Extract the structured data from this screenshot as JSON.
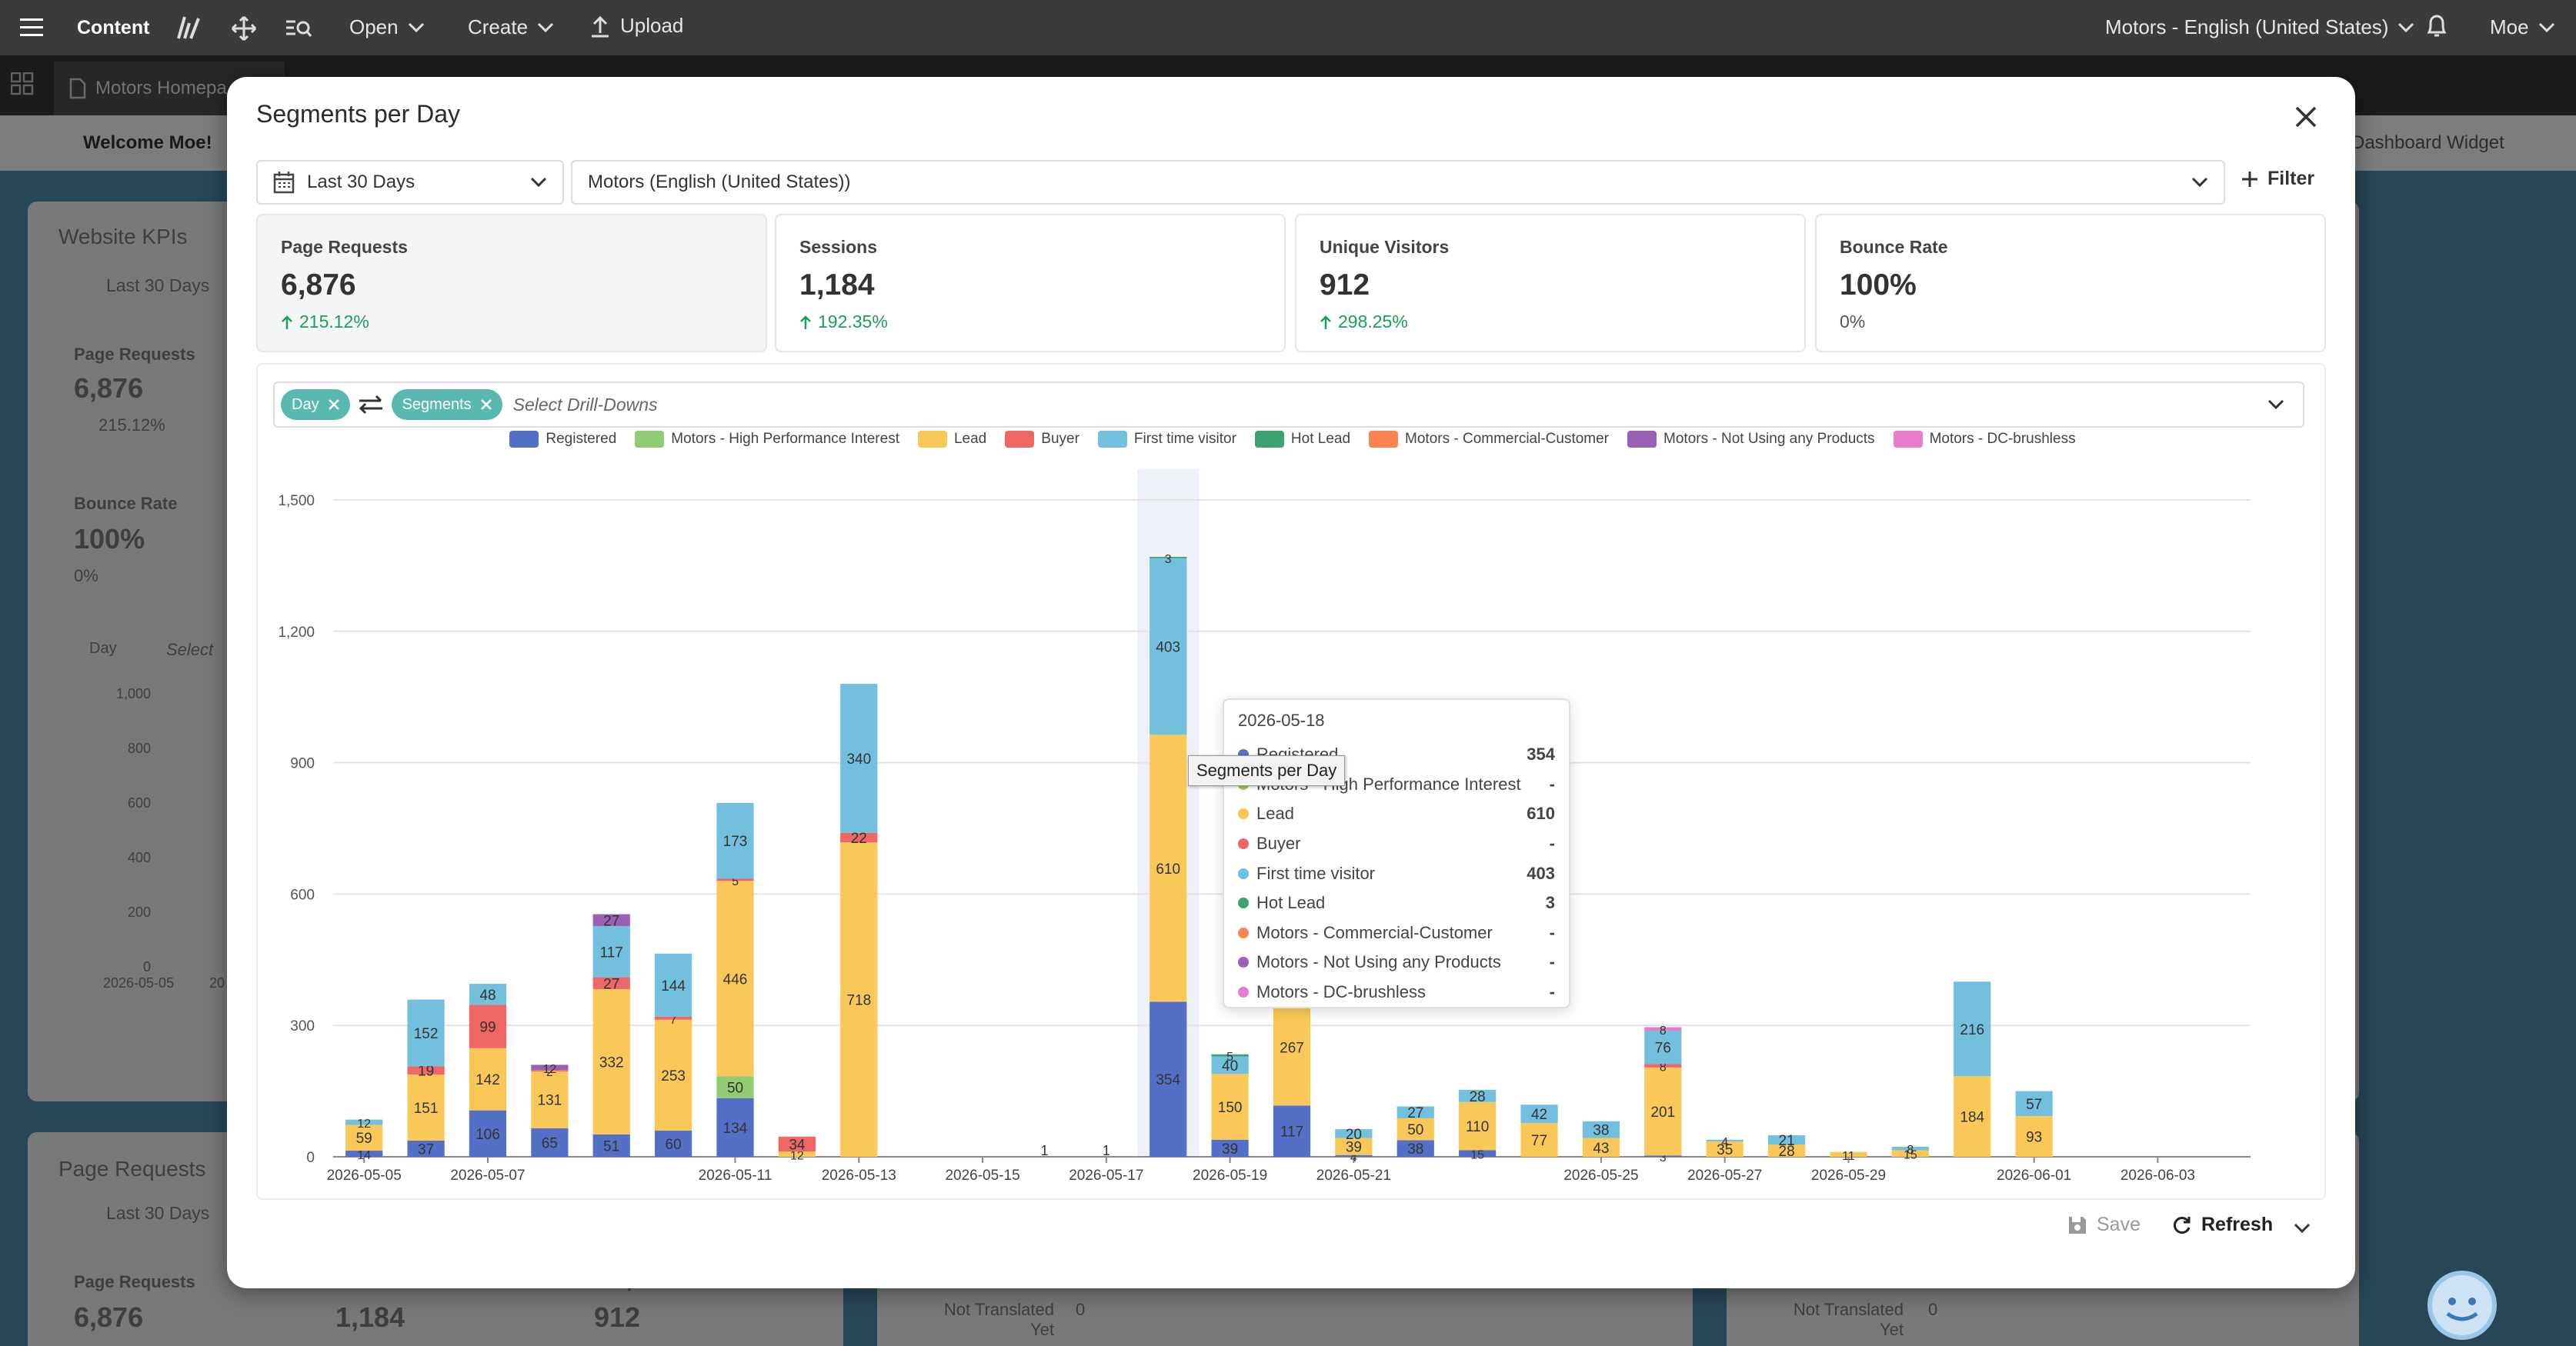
{
  "topbar": {
    "menu": [
      "Open",
      "Create"
    ],
    "upload": "Upload",
    "app_title": "Content",
    "site_selector": "Motors - English (United States)",
    "user": "Moe"
  },
  "tabbar": {
    "tab": "Motors Homepa"
  },
  "background": {
    "welcome": "Welcome Moe!",
    "dashboard_widget": "Dashboard Widget",
    "website_kpis_title": "Website KPIs",
    "date_range": "Last 30 Days",
    "page_requests_label": "Page Requests",
    "page_requests_value": "6,876",
    "page_requests_change": "215.12%",
    "bounce_rate_label": "Bounce Rate",
    "bounce_rate_value": "100%",
    "bounce_rate_change": "0%",
    "day_chip": "Day",
    "select_placeholder": "Select",
    "mini_y_ticks": [
      "1,000",
      "800",
      "600",
      "400",
      "200",
      "0"
    ],
    "mini_x_ticks": [
      "2026-05-05",
      "20"
    ],
    "page_requests_title": "Page Requests",
    "date_range2": "Last 30 Days",
    "bottom_kpis": [
      {
        "label": "Page Requests",
        "value": "6,876"
      },
      {
        "label": "Sessions",
        "value": "1,184"
      },
      {
        "label": "Unique Visitors",
        "value": "912"
      }
    ],
    "not_translated": "Not Translated Yet",
    "not_translated_value": "0"
  },
  "modal": {
    "title": "Segments per Day",
    "date_range": "Last 30 Days",
    "site": "Motors (English (United States))",
    "filter_label": "Filter",
    "kpis": [
      {
        "label": "Page Requests",
        "value": "6,876",
        "change": "215.12%",
        "up": true
      },
      {
        "label": "Sessions",
        "value": "1,184",
        "change": "192.35%",
        "up": true
      },
      {
        "label": "Unique Visitors",
        "value": "912",
        "change": "298.25%",
        "up": true
      },
      {
        "label": "Bounce Rate",
        "value": "100%",
        "change": "0%",
        "up": false
      }
    ],
    "chips": [
      "Day",
      "Segments"
    ],
    "drill_placeholder": "Select Drill-Downs",
    "save_label": "Save",
    "refresh_label": "Refresh"
  },
  "tooltip": {
    "date": "2026-05-18",
    "hover_hint": "Segments per Day",
    "rows": [
      {
        "name": "Registered",
        "value": "354",
        "color": "#5470c6"
      },
      {
        "name": "Motors - High Performance Interest",
        "value": "-",
        "color": "#91cc75"
      },
      {
        "name": "Lead",
        "value": "610",
        "color": "#fac858"
      },
      {
        "name": "Buyer",
        "value": "-",
        "color": "#ee6666"
      },
      {
        "name": "First time visitor",
        "value": "403",
        "color": "#73c0de"
      },
      {
        "name": "Hot Lead",
        "value": "3",
        "color": "#3ba272"
      },
      {
        "name": "Motors - Commercial-Customer",
        "value": "-",
        "color": "#fc8452"
      },
      {
        "name": "Motors - Not Using any Products",
        "value": "-",
        "color": "#9a60b4"
      },
      {
        "name": "Motors - DC-brushless",
        "value": "-",
        "color": "#ea7ccc"
      }
    ]
  },
  "chart_data": {
    "type": "bar",
    "stacked": true,
    "ylim": [
      0,
      1500
    ],
    "yticks": [
      0,
      300,
      600,
      900,
      1200,
      1500
    ],
    "categories": [
      "2026-05-05",
      "2026-05-06",
      "2026-05-07",
      "2026-05-08",
      "2026-05-09",
      "2026-05-10",
      "2026-05-11",
      "2026-05-12",
      "2026-05-13",
      "2026-05-14",
      "2026-05-15",
      "2026-05-16",
      "2026-05-17",
      "2026-05-18",
      "2026-05-19",
      "2026-05-20",
      "2026-05-21",
      "2026-05-22",
      "2026-05-23",
      "2026-05-24",
      "2026-05-25",
      "2026-05-26",
      "2026-05-27",
      "2026-05-28",
      "2026-05-29",
      "2026-05-30",
      "2026-05-31",
      "2026-06-01",
      "2026-06-02",
      "2026-06-03",
      "2026-06-04"
    ],
    "x_tick_labels": [
      "2026-05-05",
      "2026-05-07",
      "2026-05-11",
      "2026-05-13",
      "2026-05-15",
      "2026-05-17",
      "2026-05-19",
      "2026-05-21",
      "2026-05-25",
      "2026-05-27",
      "2026-05-29",
      "2026-06-01",
      "2026-06-03"
    ],
    "highlighted": "2026-05-18",
    "legend": [
      "Registered",
      "Motors - High Performance Interest",
      "Lead",
      "Buyer",
      "First time visitor",
      "Hot Lead",
      "Motors - Commercial-Customer",
      "Motors - Not Using any Products",
      "Motors - DC-brushless"
    ],
    "series": [
      {
        "name": "Registered",
        "color": "#5470c6",
        "values": [
          14,
          37,
          106,
          65,
          51,
          60,
          134,
          0,
          0,
          0,
          0,
          0,
          0,
          354,
          39,
          117,
          4,
          38,
          15,
          0,
          0,
          3,
          0,
          0,
          0,
          0,
          0,
          0,
          0,
          0,
          0
        ]
      },
      {
        "name": "Motors - High Performance Interest",
        "color": "#91cc75",
        "values": [
          0,
          0,
          0,
          0,
          0,
          0,
          50,
          0,
          0,
          0,
          0,
          0,
          0,
          0,
          0,
          0,
          0,
          0,
          0,
          0,
          0,
          0,
          0,
          0,
          0,
          0,
          0,
          0,
          0,
          0,
          0
        ]
      },
      {
        "name": "Lead",
        "color": "#fac858",
        "values": [
          59,
          151,
          142,
          131,
          332,
          253,
          446,
          12,
          718,
          0,
          0,
          0,
          0,
          610,
          150,
          267,
          39,
          50,
          110,
          77,
          43,
          201,
          35,
          28,
          11,
          15,
          184,
          93,
          0,
          0,
          0
        ]
      },
      {
        "name": "Buyer",
        "color": "#ee6666",
        "values": [
          0,
          19,
          99,
          2,
          27,
          7,
          5,
          34,
          22,
          0,
          0,
          0,
          0,
          0,
          0,
          0,
          0,
          0,
          0,
          0,
          0,
          8,
          0,
          0,
          0,
          0,
          0,
          0,
          0,
          0,
          0
        ]
      },
      {
        "name": "First time visitor",
        "color": "#73c0de",
        "values": [
          12,
          152,
          48,
          0,
          117,
          144,
          173,
          0,
          340,
          0,
          0,
          0,
          0,
          403,
          40,
          0,
          20,
          27,
          28,
          42,
          38,
          76,
          4,
          21,
          0,
          8,
          216,
          57,
          0,
          0,
          0
        ]
      },
      {
        "name": "Hot Lead",
        "color": "#3ba272",
        "values": [
          0,
          0,
          0,
          0,
          0,
          0,
          0,
          0,
          0,
          0,
          0,
          0,
          0,
          3,
          5,
          0,
          0,
          0,
          0,
          0,
          0,
          0,
          0,
          0,
          0,
          0,
          0,
          0,
          0,
          0,
          0
        ]
      },
      {
        "name": "Motors - Commercial-Customer",
        "color": "#fc8452",
        "values": [
          0,
          0,
          0,
          0,
          0,
          0,
          0,
          0,
          0,
          0,
          0,
          0,
          0,
          0,
          0,
          0,
          0,
          0,
          0,
          0,
          0,
          0,
          0,
          0,
          0,
          0,
          0,
          0,
          0,
          0,
          0
        ]
      },
      {
        "name": "Motors - Not Using any Products",
        "color": "#9a60b4",
        "values": [
          0,
          0,
          0,
          12,
          27,
          0,
          0,
          0,
          0,
          0,
          0,
          0,
          0,
          0,
          0,
          0,
          0,
          0,
          0,
          0,
          0,
          0,
          0,
          0,
          0,
          0,
          0,
          0,
          0,
          0,
          0
        ]
      },
      {
        "name": "Motors - DC-brushless",
        "color": "#ea7ccc",
        "values": [
          0,
          0,
          0,
          0,
          0,
          0,
          0,
          0,
          0,
          0,
          0,
          0,
          0,
          0,
          0,
          0,
          0,
          0,
          0,
          0,
          0,
          8,
          0,
          0,
          0,
          0,
          0,
          0,
          0,
          0,
          0
        ]
      }
    ],
    "single_values": {
      "2026-05-16": 1,
      "2026-05-17": 1
    }
  }
}
